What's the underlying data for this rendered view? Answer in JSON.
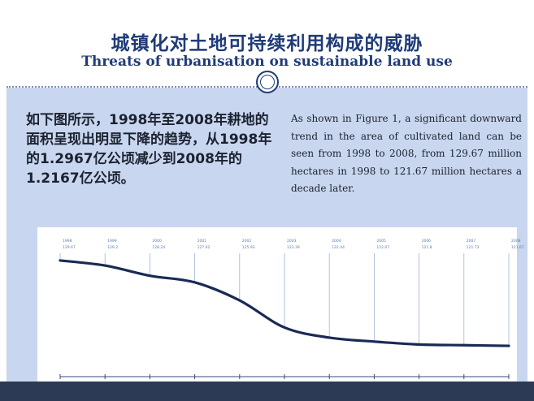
{
  "slide": {
    "title_zh": "城镇化对土地可持续利用构成的威胁",
    "title_en": "Threats of urbanisation on sustainable land use",
    "text_zh": "如下图所示，1998年至2008年耕地的面积呈现出明显下降的趋势，从1998年的1.2967亿公顷减少到2008年的1.2167亿公顷。",
    "text_en": "As shown in Figure 1, a significant downward trend in the area of cultivated land can be seen from 1998 to 2008, from 129.67 million hectares in 1998 to 121.67 million hectares a decade later."
  },
  "colors": {
    "title": "#1f3b78",
    "panel": "#c9d6ef",
    "line": "#1a2a55",
    "footer": "#2c3a55"
  },
  "chart_data": {
    "type": "line",
    "title": "",
    "xlabel": "",
    "ylabel": "",
    "ylim": [
      120,
      130.5
    ],
    "grid": false,
    "series": [
      {
        "x": [
          "1998",
          "1999",
          "2000",
          "2001",
          "2002",
          "2003",
          "2004",
          "2005",
          "2006",
          "2007",
          "2008"
        ],
        "values": [
          129.67,
          129.2,
          128.24,
          127.62,
          125.93,
          123.39,
          122.44,
          122.07,
          121.8,
          121.73,
          121.67
        ]
      }
    ],
    "labels": [
      "129.67",
      "129.2",
      "128.24",
      "127.62",
      "125.93",
      "123.39",
      "122.44",
      "122.07",
      "121.8",
      "121.73",
      "121.67"
    ]
  }
}
